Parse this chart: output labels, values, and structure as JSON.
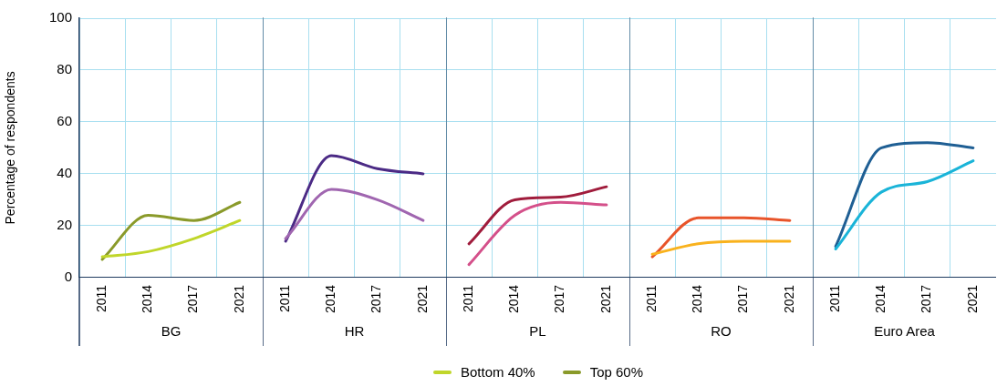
{
  "chart_data": [
    {
      "type": "line",
      "xlabel": "BG",
      "ylabel": "Percentage of respondents",
      "categories": [
        "2011",
        "2014",
        "2017",
        "2021"
      ],
      "ylim": [
        0,
        100
      ],
      "yticks": [
        0,
        20,
        40,
        60,
        80,
        100
      ],
      "grid": true,
      "legend": "bottom",
      "marker": "none",
      "line_style": "solid",
      "series": [
        {
          "name": "Bottom 40%",
          "color": "#c0d62a",
          "values": [
            8,
            10,
            15,
            22
          ]
        },
        {
          "name": "Top 60%",
          "color": "#8a9a2a",
          "values": [
            7,
            24,
            22,
            29
          ]
        }
      ]
    },
    {
      "type": "line",
      "xlabel": "HR",
      "categories": [
        "2011",
        "2014",
        "2017",
        "2021"
      ],
      "ylim": [
        0,
        100
      ],
      "yticks": [
        0,
        20,
        40,
        60,
        80,
        100
      ],
      "tick_labels": "x",
      "grid": true,
      "marker": "none",
      "line_style": "solid",
      "series": [
        {
          "color": "#a066b0",
          "values": [
            15,
            34,
            30,
            22
          ]
        },
        {
          "color": "#4b2a85",
          "values": [
            14,
            47,
            42,
            40
          ]
        }
      ]
    },
    {
      "type": "line",
      "xlabel": "PL",
      "categories": [
        "2011",
        "2014",
        "2017",
        "2021"
      ],
      "ylim": [
        0,
        100
      ],
      "yticks": [
        0,
        20,
        40,
        60,
        80,
        100
      ],
      "tick_labels": "x",
      "grid": true,
      "marker": "none",
      "line_style": "solid",
      "series": [
        {
          "color": "#d4508a",
          "values": [
            5,
            24,
            29,
            28
          ]
        },
        {
          "color": "#a01c3c",
          "values": [
            13,
            30,
            31,
            35
          ]
        }
      ]
    },
    {
      "type": "line",
      "xlabel": "RO",
      "categories": [
        "2011",
        "2014",
        "2017",
        "2021"
      ],
      "ylim": [
        0,
        100
      ],
      "yticks": [
        0,
        20,
        40,
        60,
        80,
        100
      ],
      "tick_labels": "x",
      "grid": true,
      "marker": "none",
      "line_style": "solid",
      "series": [
        {
          "color": "#f9b21d",
          "values": [
            9,
            13,
            14,
            14
          ]
        },
        {
          "color": "#e8542a",
          "values": [
            8,
            23,
            23,
            22
          ]
        }
      ]
    },
    {
      "type": "line",
      "xlabel": "Euro Area",
      "categories": [
        "2011",
        "2014",
        "2017",
        "2021"
      ],
      "ylim": [
        0,
        100
      ],
      "yticks": [
        0,
        20,
        40,
        60,
        80,
        100
      ],
      "tick_labels": "x",
      "grid": true,
      "marker": "none",
      "line_style": "solid",
      "series": [
        {
          "color": "#1ab4d8",
          "values": [
            11,
            33,
            37,
            45
          ]
        },
        {
          "color": "#1f5f94",
          "values": [
            12,
            50,
            52,
            50
          ]
        }
      ]
    }
  ]
}
